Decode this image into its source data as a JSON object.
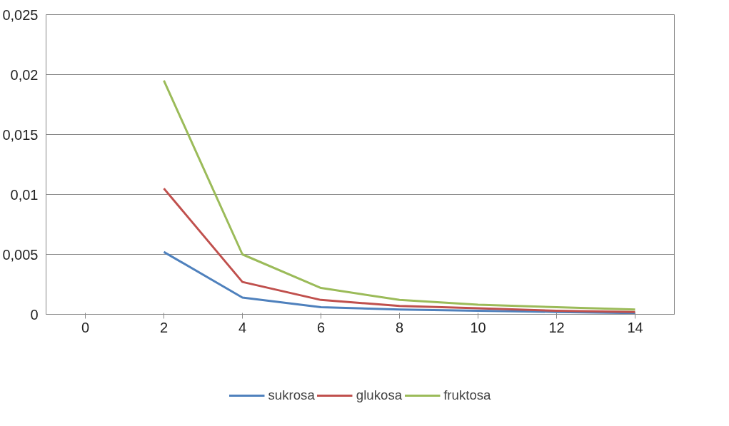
{
  "chart_data": {
    "type": "line",
    "categories": [
      "0",
      "2",
      "4",
      "6",
      "8",
      "10",
      "12",
      "14"
    ],
    "series": [
      {
        "name": "sukrosa",
        "color": "#4f81bd",
        "values": [
          null,
          0.0052,
          0.0014,
          0.0006,
          0.0004,
          0.0003,
          0.0002,
          0.0001
        ]
      },
      {
        "name": "glukosa",
        "color": "#c0504d",
        "values": [
          null,
          0.0105,
          0.0027,
          0.0012,
          0.0007,
          0.0005,
          0.0003,
          0.0002
        ]
      },
      {
        "name": "fruktosa",
        "color": "#9bbb59",
        "values": [
          null,
          0.0195,
          0.005,
          0.0022,
          0.0012,
          0.0008,
          0.0006,
          0.0004
        ]
      }
    ],
    "ylim": [
      0,
      0.025
    ],
    "yticks": [
      {
        "value": 0,
        "label": "0"
      },
      {
        "value": 0.005,
        "label": "0,005"
      },
      {
        "value": 0.01,
        "label": "0,01"
      },
      {
        "value": 0.015,
        "label": "0,015"
      },
      {
        "value": 0.02,
        "label": "0,02"
      },
      {
        "value": 0.025,
        "label": "0,025"
      }
    ],
    "grid": "y",
    "legend": "bottom",
    "line_style": "solid",
    "marker": "none"
  }
}
